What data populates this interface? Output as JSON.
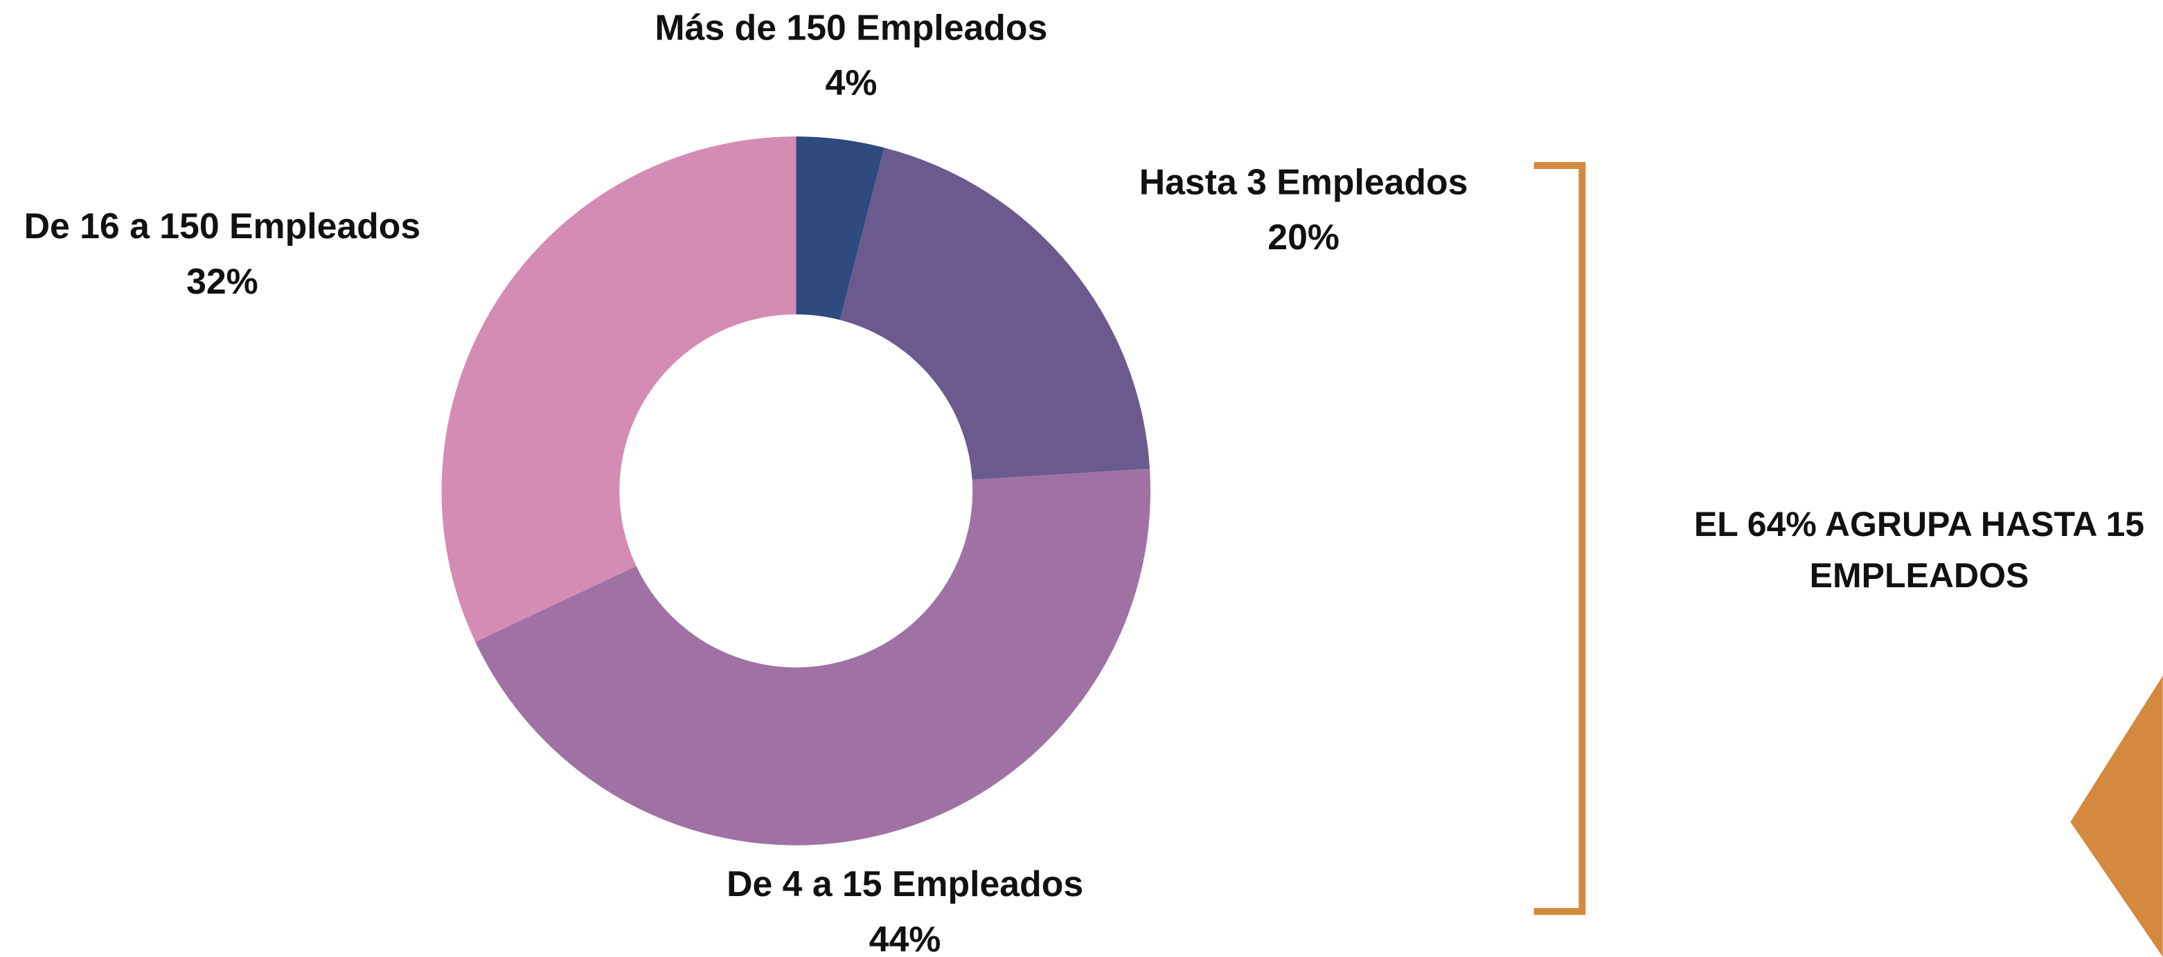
{
  "chart_data": {
    "type": "donut",
    "categories": [
      "Más de 150 Empleados",
      "Hasta 3 Empleados",
      "De 4 a 15 Empleados",
      "De 16 a 150 Empleados"
    ],
    "values": [
      4,
      20,
      44,
      32
    ],
    "value_labels": [
      "4%",
      "20%",
      "44%",
      "32%"
    ],
    "colors": [
      "#2e4a7e",
      "#6a5a8e",
      "#a072a4",
      "#d48cb4"
    ],
    "annotation": "EL 64% AGRUPA HASTA 15 EMPLEADOS"
  }
}
